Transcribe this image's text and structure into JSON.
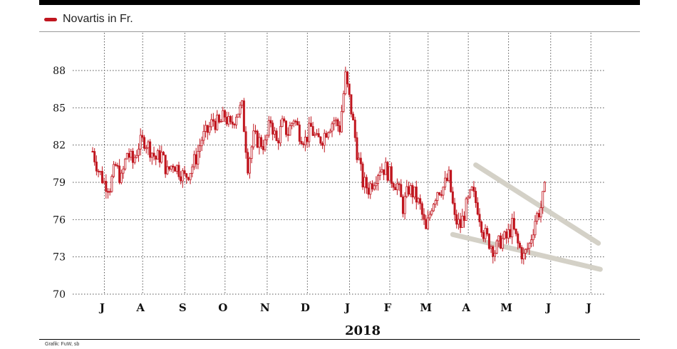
{
  "legend": {
    "label": "Novartis in Fr.",
    "color": "#c0161f"
  },
  "source": "Grafik: FuW, sb",
  "colors": {
    "candle": "#c0161f",
    "trend": "#d4d1c7",
    "grid": "#555555"
  },
  "chart_data": {
    "type": "line",
    "series": [
      {
        "name": "Novartis in Fr.",
        "values": [
          [
            0,
            81.5
          ],
          [
            3,
            80.0
          ],
          [
            6,
            79.0
          ],
          [
            9,
            78.7
          ],
          [
            12,
            80.3
          ],
          [
            15,
            79.2
          ],
          [
            18,
            81.4
          ],
          [
            21,
            80.6
          ],
          [
            24,
            82.0
          ],
          [
            27,
            82.4
          ],
          [
            30,
            81.7
          ],
          [
            33,
            80.9
          ],
          [
            36,
            81.2
          ],
          [
            39,
            79.8
          ],
          [
            42,
            80.6
          ],
          [
            45,
            80.0
          ],
          [
            48,
            79.4
          ],
          [
            51,
            80.0
          ],
          [
            54,
            81.0
          ],
          [
            57,
            82.5
          ],
          [
            60,
            83.1
          ],
          [
            63,
            84.0
          ],
          [
            66,
            83.6
          ],
          [
            69,
            84.4
          ],
          [
            72,
            83.4
          ],
          [
            75,
            84.6
          ],
          [
            78,
            85.0
          ],
          [
            81,
            80.4
          ],
          [
            84,
            82.6
          ],
          [
            87,
            82.3
          ],
          [
            90,
            82.0
          ],
          [
            93,
            84.0
          ],
          [
            96,
            82.2
          ],
          [
            99,
            83.6
          ],
          [
            102,
            83.0
          ],
          [
            105,
            84.2
          ],
          [
            108,
            83.0
          ],
          [
            111,
            82.4
          ],
          [
            114,
            83.4
          ],
          [
            117,
            82.3
          ],
          [
            120,
            82.6
          ],
          [
            123,
            83.5
          ],
          [
            126,
            84.0
          ],
          [
            129,
            83.4
          ],
          [
            132,
            87.5
          ],
          [
            135,
            84.8
          ],
          [
            138,
            81.5
          ],
          [
            141,
            79.0
          ],
          [
            144,
            78.5
          ],
          [
            147,
            79.3
          ],
          [
            150,
            80.2
          ],
          [
            153,
            80.1
          ],
          [
            156,
            79.3
          ],
          [
            159,
            78.8
          ],
          [
            162,
            77.0
          ],
          [
            165,
            78.5
          ],
          [
            168,
            78.0
          ],
          [
            171,
            77.0
          ],
          [
            174,
            75.0
          ],
          [
            177,
            77.2
          ],
          [
            180,
            78.4
          ],
          [
            183,
            78.6
          ],
          [
            186,
            79.4
          ],
          [
            189,
            76.0
          ],
          [
            192,
            75.5
          ],
          [
            195,
            77.0
          ],
          [
            198,
            78.2
          ],
          [
            201,
            77.0
          ],
          [
            204,
            75.0
          ],
          [
            207,
            74.2
          ],
          [
            210,
            73.5
          ],
          [
            213,
            74.3
          ],
          [
            216,
            74.5
          ],
          [
            219,
            75.5
          ],
          [
            222,
            74.0
          ],
          [
            225,
            73.0
          ],
          [
            228,
            74.0
          ],
          [
            231,
            76.0
          ],
          [
            234,
            77.0
          ],
          [
            237,
            79.0
          ]
        ]
      }
    ],
    "x_total_days": 240,
    "month_ticks": [
      {
        "label": "J",
        "day": 5
      },
      {
        "label": "A",
        "day": 25
      },
      {
        "label": "S",
        "day": 47
      },
      {
        "label": "O",
        "day": 68
      },
      {
        "label": "N",
        "day": 90
      },
      {
        "label": "D",
        "day": 111
      },
      {
        "label": "J",
        "day": 133
      },
      {
        "label": "F",
        "day": 154
      },
      {
        "label": "M",
        "day": 174
      },
      {
        "label": "A",
        "day": 195
      },
      {
        "label": "M",
        "day": 216
      },
      {
        "label": "J",
        "day": 238
      },
      {
        "label": "J",
        "day": 259
      }
    ],
    "year_label": "2018",
    "ylim": [
      70,
      91
    ],
    "y_ticks": [
      70,
      73,
      76,
      79,
      82,
      85,
      88
    ],
    "trend_lines": [
      {
        "name": "upper-trend",
        "from": [
          200,
          80.4
        ],
        "to": [
          264,
          74.1
        ]
      },
      {
        "name": "lower-trend",
        "from": [
          188,
          74.8
        ],
        "to": [
          265,
          72.0
        ]
      }
    ],
    "grid": true
  }
}
